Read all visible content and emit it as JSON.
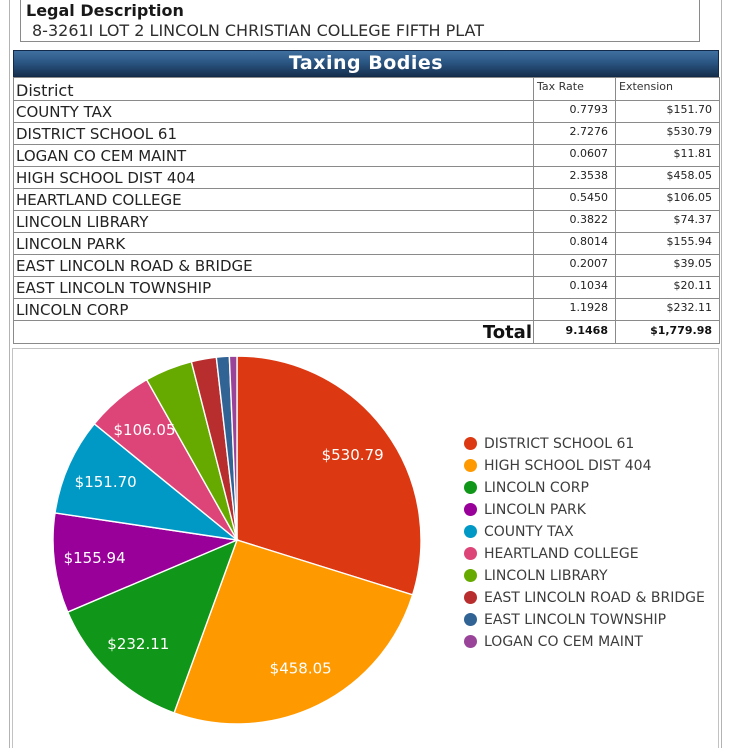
{
  "legal": {
    "title": "Legal Description",
    "value": "8-3261I LOT 2 LINCOLN CHRISTIAN COLLEGE FIFTH PLAT"
  },
  "table": {
    "title": "Taxing Bodies",
    "columns": [
      "District",
      "Tax Rate",
      "Extension"
    ],
    "rows": [
      {
        "district": "COUNTY TAX",
        "tax_rate": "0.7793",
        "extension": "$151.70"
      },
      {
        "district": "DISTRICT SCHOOL 61",
        "tax_rate": "2.7276",
        "extension": "$530.79"
      },
      {
        "district": "LOGAN CO CEM MAINT",
        "tax_rate": "0.0607",
        "extension": "$11.81"
      },
      {
        "district": "HIGH SCHOOL DIST 404",
        "tax_rate": "2.3538",
        "extension": "$458.05"
      },
      {
        "district": "HEARTLAND COLLEGE",
        "tax_rate": "0.5450",
        "extension": "$106.05"
      },
      {
        "district": "LINCOLN LIBRARY",
        "tax_rate": "0.3822",
        "extension": "$74.37"
      },
      {
        "district": "LINCOLN PARK",
        "tax_rate": "0.8014",
        "extension": "$155.94"
      },
      {
        "district": "EAST LINCOLN ROAD & BRIDGE",
        "tax_rate": "0.2007",
        "extension": "$39.05"
      },
      {
        "district": "EAST LINCOLN TOWNSHIP",
        "tax_rate": "0.1034",
        "extension": "$20.11"
      },
      {
        "district": "LINCOLN CORP",
        "tax_rate": "1.1928",
        "extension": "$232.11"
      }
    ],
    "total": {
      "label": "Total",
      "tax_rate": "9.1468",
      "extension": "$1,779.98"
    }
  },
  "chart_data": {
    "type": "pie",
    "categories": [
      "DISTRICT SCHOOL 61",
      "HIGH SCHOOL DIST 404",
      "LINCOLN CORP",
      "LINCOLN PARK",
      "COUNTY TAX",
      "HEARTLAND COLLEGE",
      "LINCOLN LIBRARY",
      "EAST LINCOLN ROAD & BRIDGE",
      "EAST LINCOLN TOWNSHIP",
      "LOGAN CO CEM MAINT"
    ],
    "values": [
      530.79,
      458.05,
      232.11,
      155.94,
      151.7,
      106.05,
      74.37,
      39.05,
      20.11,
      11.81
    ],
    "slice_labels": [
      "$530.79",
      "$458.05",
      "$232.11",
      "$155.94",
      "$151.70",
      "$106.05",
      "",
      "",
      "",
      ""
    ],
    "colors": [
      "#dc3912",
      "#ff9900",
      "#109618",
      "#990099",
      "#0099c6",
      "#dd4477",
      "#66aa00",
      "#b82e2e",
      "#316395",
      "#994499"
    ],
    "title": "",
    "legend_position": "right",
    "start_angle_deg": 0,
    "direction": "clockwise",
    "total": 1779.98
  },
  "theme": {
    "band_top": "#40709f",
    "band_bottom": "#16304e",
    "band_text": "#ffffff",
    "table_border": "#8a8a8a",
    "slice_label_color": "#ffffff"
  }
}
